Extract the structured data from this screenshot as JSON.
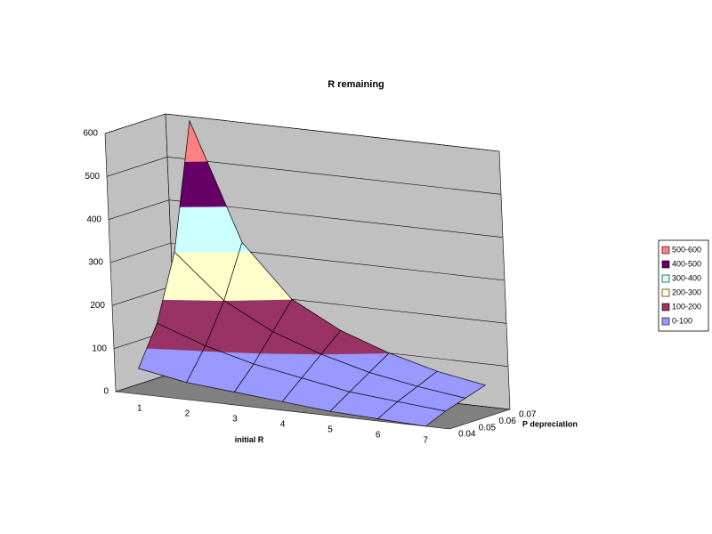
{
  "chart_data": {
    "type": "surface",
    "title": "R remaining",
    "x_label": "initial R",
    "depth_label": "P depreciation",
    "categories": [
      1,
      2,
      3,
      4,
      5,
      6,
      7
    ],
    "series": [
      {
        "name": 0.04,
        "values": [
          60,
          40,
          30,
          20,
          10,
          5,
          0
        ]
      },
      {
        "name": 0.05,
        "values": [
          150,
          110,
          80,
          60,
          40,
          30,
          20
        ]
      },
      {
        "name": 0.06,
        "values": [
          300,
          200,
          140,
          100,
          70,
          50,
          35
        ]
      },
      {
        "name": 0.07,
        "values": [
          590,
          320,
          200,
          140,
          100,
          70,
          50
        ]
      }
    ],
    "zlim": [
      0,
      600
    ],
    "zticks": [
      0,
      100,
      200,
      300,
      400,
      500,
      600
    ],
    "bands": [
      {
        "label": "0-100",
        "color": "#9999ff"
      },
      {
        "label": "100-200",
        "color": "#993366"
      },
      {
        "label": "200-300",
        "color": "#ffffcc"
      },
      {
        "label": "300-400",
        "color": "#ccffff"
      },
      {
        "label": "400-500",
        "color": "#660066"
      },
      {
        "label": "500-600",
        "color": "#ff8080"
      }
    ],
    "legend": "right"
  }
}
